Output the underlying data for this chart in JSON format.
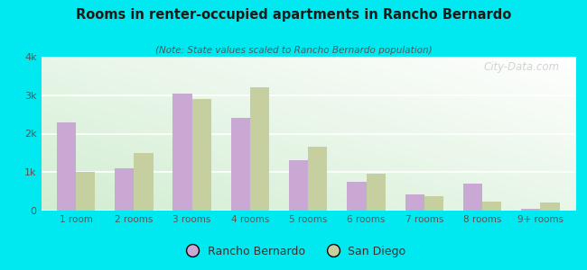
{
  "title": "Rooms in renter-occupied apartments in Rancho Bernardo",
  "subtitle": "(Note: State values scaled to Rancho Bernardo population)",
  "categories": [
    "1 room",
    "2 rooms",
    "3 rooms",
    "4 rooms",
    "5 rooms",
    "6 rooms",
    "7 rooms",
    "8 rooms",
    "9+ rooms"
  ],
  "rancho_bernardo": [
    2300,
    1100,
    3050,
    2400,
    1300,
    750,
    420,
    700,
    50
  ],
  "san_diego": [
    1000,
    1500,
    2900,
    3200,
    1650,
    950,
    380,
    230,
    220
  ],
  "bar_color_rb": "#c9a8d4",
  "bar_color_sd": "#c5cfa0",
  "background_outer": "#00e8f0",
  "ylim": [
    0,
    4000
  ],
  "yticks": [
    0,
    1000,
    2000,
    3000,
    4000
  ],
  "ytick_labels": [
    "0",
    "1k",
    "2k",
    "3k",
    "4k"
  ],
  "legend_rb": "Rancho Bernardo",
  "legend_sd": "San Diego",
  "watermark": "City-Data.com"
}
